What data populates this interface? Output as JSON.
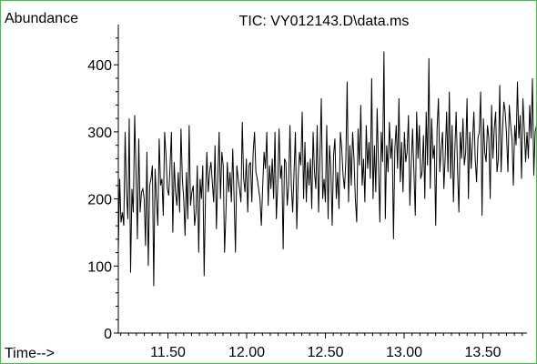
{
  "chart_data": {
    "type": "line",
    "title": "TIC: VY012143.D\\data.ms",
    "ylabel": "Abundance",
    "xlabel": "Time-->",
    "xlim": [
      11.185,
      13.78
    ],
    "ylim": [
      0,
      460
    ],
    "x_ticks": [
      11.5,
      12.0,
      12.5,
      13.0,
      13.5
    ],
    "x_tick_labels": [
      "11.50",
      "12.00",
      "12.50",
      "13.00",
      "13.50"
    ],
    "y_ticks": [
      0,
      100,
      200,
      300,
      400
    ],
    "y_tick_labels": [
      "0",
      "100",
      "200",
      "300",
      "400"
    ],
    "grid": false,
    "legend": "none",
    "line_color": "#000000",
    "frame_color": "#33cc33",
    "series": [
      {
        "x_start": 11.185,
        "x_step": 0.00865,
        "values": [
          125,
          230,
          165,
          180,
          160,
          300,
          210,
          170,
          320,
          90,
          215,
          180,
          325,
          240,
          140,
          290,
          180,
          210,
          215,
          200,
          130,
          270,
          100,
          220,
          230,
          250,
          70,
          245,
          200,
          160,
          290,
          220,
          230,
          175,
          300,
          265,
          215,
          205,
          250,
          300,
          150,
          255,
          210,
          190,
          240,
          180,
          305,
          230,
          200,
          145,
          240,
          170,
          310,
          190,
          210,
          220,
          160,
          180,
          250,
          120,
          230,
          200,
          250,
          85,
          205,
          270,
          210,
          240,
          255,
          225,
          195,
          280,
          155,
          230,
          300,
          200,
          270,
          250,
          120,
          180,
          255,
          210,
          240,
          195,
          275,
          200,
          120,
          250,
          230,
          215,
          195,
          315,
          230,
          210,
          260,
          180,
          250,
          255,
          195,
          270,
          300,
          240,
          230,
          215,
          200,
          160,
          220,
          270,
          245,
          300,
          190,
          250,
          215,
          260,
          200,
          300,
          170,
          220,
          305,
          230,
          250,
          125,
          260,
          255,
          190,
          220,
          310,
          220,
          180,
          240,
          300,
          155,
          230,
          270,
          250,
          330,
          200,
          285,
          195,
          255,
          220,
          260,
          185,
          300,
          240,
          215,
          310,
          180,
          260,
          350,
          200,
          230,
          195,
          310,
          170,
          280,
          245,
          160,
          265,
          290,
          200,
          240,
          185,
          300,
          275,
          235,
          215,
          255,
          375,
          195,
          280,
          220,
          300,
          260,
          200,
          165,
          305,
          250,
          340,
          220,
          260,
          195,
          310,
          245,
          285,
          230,
          380,
          200,
          280,
          210,
          335,
          250,
          165,
          300,
          255,
          420,
          170,
          280,
          240,
          315,
          260,
          290,
          140,
          275,
          310,
          245,
          350,
          225,
          285,
          210,
          300,
          255,
          270,
          325,
          190,
          250,
          305,
          240,
          175,
          330,
          260,
          310,
          230,
          240,
          295,
          200,
          330,
          250,
          410,
          215,
          320,
          260,
          280,
          160,
          305,
          350,
          240,
          275,
          300,
          215,
          265,
          330,
          240,
          360,
          230,
          310,
          195,
          270,
          330,
          245,
          180,
          300,
          260,
          320,
          250,
          270,
          350,
          200,
          300,
          245,
          285,
          330,
          260,
          225,
          290,
          300,
          360,
          175,
          320,
          270,
          255,
          310,
          290,
          200,
          340,
          260,
          305,
          330,
          240,
          260,
          370,
          240,
          300,
          345,
          330,
          295,
          240,
          340,
          310,
          290,
          220,
          310,
          280,
          375,
          290,
          325,
          230,
          350,
          305,
          255,
          300,
          260,
          340,
          290,
          380,
          235,
          300,
          310,
          300,
          385,
          295,
          315,
          340,
          275,
          355,
          300,
          320,
          260,
          290,
          350,
          300,
          270,
          310,
          250,
          370,
          340,
          305,
          360,
          400,
          330,
          390,
          360,
          370,
          250,
          390,
          380,
          330,
          310,
          350,
          410,
          280,
          330,
          300,
          370,
          200,
          340,
          370,
          300,
          290,
          330,
          270,
          310,
          230,
          320
        ]
      }
    ]
  }
}
